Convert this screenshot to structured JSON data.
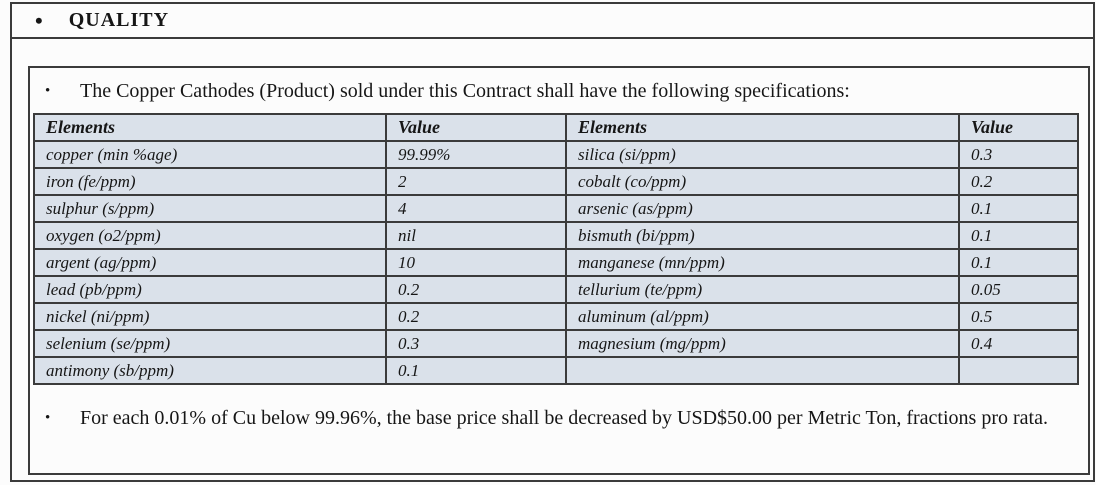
{
  "section": {
    "bullet": "•",
    "title": "QUALITY"
  },
  "intro": {
    "bullet": "•",
    "text": "The Copper Cathodes (Product) sold under this Contract shall have the following specifications:"
  },
  "spec_table": {
    "headers": [
      "Elements",
      "Value",
      "Elements",
      "Value"
    ],
    "rows": [
      [
        "copper (min %age)",
        "99.99%",
        "silica (si/ppm)",
        "0.3"
      ],
      [
        "iron (fe/ppm)",
        "2",
        "cobalt (co/ppm)",
        "0.2"
      ],
      [
        "sulphur (s/ppm)",
        "4",
        "arsenic (as/ppm)",
        "0.1"
      ],
      [
        "oxygen (o2/ppm)",
        "nil",
        "bismuth (bi/ppm)",
        "0.1"
      ],
      [
        "argent (ag/ppm)",
        "10",
        "manganese (mn/ppm)",
        "0.1"
      ],
      [
        "lead (pb/ppm)",
        "0.2",
        "tellurium (te/ppm)",
        "0.05"
      ],
      [
        "nickel (ni/ppm)",
        "0.2",
        "aluminum (al/ppm)",
        "0.5"
      ],
      [
        "selenium (se/ppm)",
        "0.3",
        "magnesium (mg/ppm)",
        "0.4"
      ],
      [
        "antimony (sb/ppm)",
        "0.1",
        "",
        ""
      ]
    ]
  },
  "price_note": {
    "bullet": "•",
    "text": "For each 0.01% of Cu below 99.96%, the base price shall be decreased by USD$50.00 per Metric Ton, fractions pro rata."
  },
  "colors": {
    "cell_bg": "#dae1ea",
    "line": "#3b3b3b",
    "text": "#161616",
    "page_bg": "#fcfcfc"
  }
}
